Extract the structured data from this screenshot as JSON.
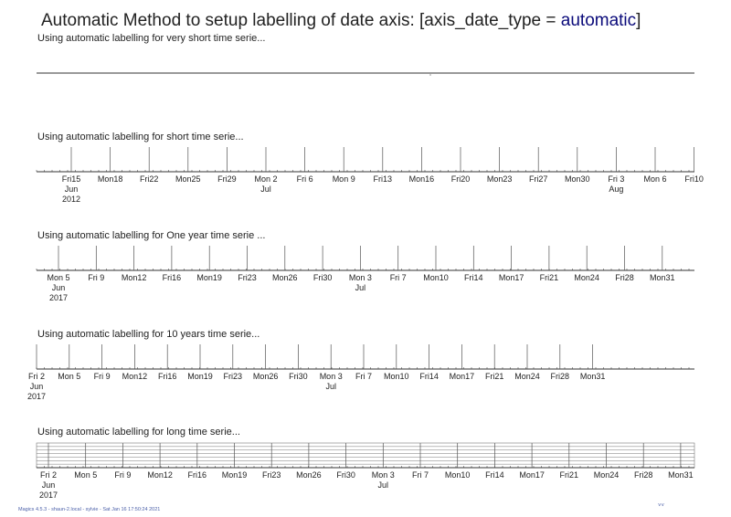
{
  "title": {
    "prefix": "Automatic Method to setup labelling of date axis: [axis_date_type = ",
    "accent": "automatic",
    "suffix": "]"
  },
  "footer": {
    "text": "Magics 4.5.3 - shaun-2.local - sylvie - Sat Jan 16 17:50:24 2021",
    "mark": "˅˅"
  },
  "colors": {
    "axis": "#555555",
    "grid": "#777777",
    "text": "#222222",
    "accent": "#0a0a7a",
    "footer": "#4a5fa8"
  },
  "chart_data": [
    {
      "type": "line",
      "title": "Using automatic labelling for very short time serie...",
      "axis_style": "plain",
      "ticks": []
    },
    {
      "type": "line",
      "title": "Using automatic labelling for short time serie...",
      "axis_style": "ticks",
      "ticks": [
        {
          "day": "Fri15",
          "month": "Jun",
          "year": "2012"
        },
        {
          "day": "Mon18"
        },
        {
          "day": "Fri22"
        },
        {
          "day": "Mon25"
        },
        {
          "day": "Fri29"
        },
        {
          "day": "Mon 2",
          "month": "Jul"
        },
        {
          "day": "Fri 6"
        },
        {
          "day": "Mon 9"
        },
        {
          "day": "Fri13"
        },
        {
          "day": "Mon16"
        },
        {
          "day": "Fri20"
        },
        {
          "day": "Mon23"
        },
        {
          "day": "Fri27"
        },
        {
          "day": "Mon30"
        },
        {
          "day": "Fri 3",
          "month": "Aug"
        },
        {
          "day": "Mon 6"
        },
        {
          "day": "Fri10"
        }
      ]
    },
    {
      "type": "line",
      "title": "Using automatic labelling for One year time serie ...",
      "axis_style": "ticks",
      "ticks": [
        {
          "day": "Mon 5",
          "month": "Jun",
          "year": "2017"
        },
        {
          "day": "Fri 9"
        },
        {
          "day": "Mon12"
        },
        {
          "day": "Fri16"
        },
        {
          "day": "Mon19"
        },
        {
          "day": "Fri23"
        },
        {
          "day": "Mon26"
        },
        {
          "day": "Fri30"
        },
        {
          "day": "Mon 3",
          "month": "Jul"
        },
        {
          "day": "Fri 7"
        },
        {
          "day": "Mon10"
        },
        {
          "day": "Fri14"
        },
        {
          "day": "Mon17"
        },
        {
          "day": "Fri21"
        },
        {
          "day": "Mon24"
        },
        {
          "day": "Fri28"
        },
        {
          "day": "Mon31"
        }
      ]
    },
    {
      "type": "line",
      "title": "Using automatic labelling for 10 years time serie...",
      "axis_style": "ticks",
      "ticks": [
        {
          "day": "Fri 2",
          "month": "Jun",
          "year": "2017"
        },
        {
          "day": "Mon 5"
        },
        {
          "day": "Fri 9"
        },
        {
          "day": "Mon12"
        },
        {
          "day": "Fri16"
        },
        {
          "day": "Mon19"
        },
        {
          "day": "Fri23"
        },
        {
          "day": "Mon26"
        },
        {
          "day": "Fri30"
        },
        {
          "day": "Mon 3",
          "month": "Jul"
        },
        {
          "day": "Fri 7"
        },
        {
          "day": "Mon10"
        },
        {
          "day": "Fri14"
        },
        {
          "day": "Mon17"
        },
        {
          "day": "Fri21"
        },
        {
          "day": "Mon24"
        },
        {
          "day": "Fri28"
        },
        {
          "day": "Mon31"
        }
      ]
    },
    {
      "type": "line",
      "title": "Using automatic labelling for long time serie...",
      "axis_style": "grid",
      "grid": true,
      "ticks": [
        {
          "day": "Fri 2",
          "month": "Jun",
          "year": "2017"
        },
        {
          "day": "Mon 5"
        },
        {
          "day": "Fri 9"
        },
        {
          "day": "Mon12"
        },
        {
          "day": "Fri16"
        },
        {
          "day": "Mon19"
        },
        {
          "day": "Fri23"
        },
        {
          "day": "Mon26"
        },
        {
          "day": "Fri30"
        },
        {
          "day": "Mon 3",
          "month": "Jul"
        },
        {
          "day": "Fri 7"
        },
        {
          "day": "Mon10"
        },
        {
          "day": "Fri14"
        },
        {
          "day": "Mon17"
        },
        {
          "day": "Fri21"
        },
        {
          "day": "Mon24"
        },
        {
          "day": "Fri28"
        },
        {
          "day": "Mon31"
        }
      ]
    }
  ]
}
